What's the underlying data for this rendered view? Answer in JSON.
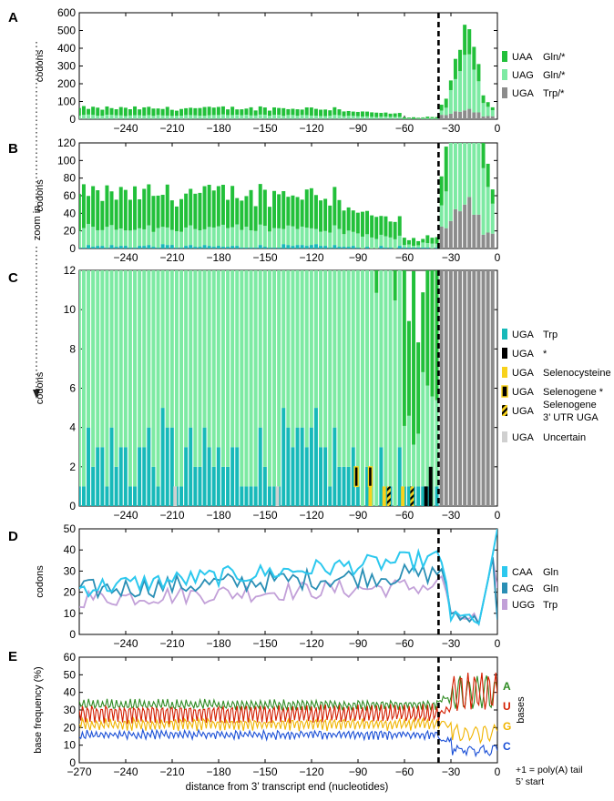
{
  "figure": {
    "xlabel": "distance from 3’ transcript end (nucleotides)",
    "zoom_label": "zoom in",
    "footnote_line1": "+1 = poly(A) tail",
    "footnote_line2": "5’ start"
  },
  "colors": {
    "uaa": "#22c03a",
    "uag": "#7deaa3",
    "uga_stop": "#8c8c8c",
    "uga_trp": "#17b9b9",
    "uga_star": "#000000",
    "uga_sec": "#f8d21c",
    "uncertain": "#d0d0d0",
    "caa": "#2cc8ee",
    "cag": "#2a8fb5",
    "ugg": "#c2a0d8",
    "A": "#2e8b22",
    "U": "#d41e00",
    "G": "#f0b400",
    "C": "#1a4fd6"
  },
  "chart_data": [
    {
      "panel": "A",
      "type": "bar",
      "stacked": true,
      "ylabel": "codons",
      "ylim": [
        0,
        600
      ],
      "yticks": [
        0,
        100,
        200,
        300,
        400,
        500,
        600
      ],
      "xlim": [
        -270,
        0
      ],
      "xticks": [
        -240,
        -210,
        -180,
        -150,
        -120,
        -90,
        -60,
        -30,
        0
      ],
      "cutoff_line_x": -38,
      "legend": [
        {
          "codon": "UAA",
          "label": "Gln/*",
          "color_key": "uaa"
        },
        {
          "codon": "UAG",
          "label": "Gln/*",
          "color_key": "uag"
        },
        {
          "codon": "UGA",
          "label": "Trp/*",
          "color_key": "uga_stop"
        }
      ]
    },
    {
      "panel": "B",
      "type": "bar",
      "stacked": true,
      "ylabel": "codons",
      "ylim": [
        0,
        120
      ],
      "yticks": [
        0,
        20,
        40,
        60,
        80,
        100,
        120
      ],
      "xlim": [
        -270,
        0
      ],
      "xticks": [
        -240,
        -210,
        -180,
        -150,
        -120,
        -90,
        -60,
        -30,
        0
      ],
      "cutoff_line_x": -38
    },
    {
      "panel": "C",
      "type": "bar",
      "stacked": true,
      "ylabel": "codons",
      "ylim": [
        0,
        12
      ],
      "yticks": [
        0,
        2,
        4,
        6,
        8,
        10,
        12
      ],
      "xlim": [
        -270,
        0
      ],
      "xticks": [
        -240,
        -210,
        -180,
        -150,
        -120,
        -90,
        -60,
        -30,
        0
      ],
      "cutoff_line_x": -38,
      "legend": [
        {
          "codon": "UGA",
          "label": "Trp",
          "color_key": "uga_trp"
        },
        {
          "codon": "UGA",
          "label": "*",
          "color_key": "uga_star"
        },
        {
          "codon": "UGA",
          "label": "Selenocysteine",
          "color_key": "uga_sec"
        },
        {
          "codon": "UGA",
          "label": "Selenogene *",
          "color_key": "uga_star"
        },
        {
          "codon": "UGA",
          "label": "Selenogene",
          "label2": "3’ UTR UGA",
          "color_key": "uga_star"
        },
        {
          "codon": "UGA",
          "label": "Uncertain",
          "color_key": "uncertain"
        }
      ],
      "special_bars": [
        {
          "x": -91,
          "kind": "selenogene_star",
          "value": 1
        },
        {
          "x": -82,
          "kind": "selenocysteine",
          "value": 1
        },
        {
          "x": -82,
          "kind": "selenogene_star",
          "value": 1
        },
        {
          "x": -73,
          "kind": "selenocysteine",
          "value": 1
        },
        {
          "x": -70,
          "kind": "selenogene_utr",
          "value": 1
        },
        {
          "x": -61,
          "kind": "selenocysteine",
          "value": 1
        },
        {
          "x": -55,
          "kind": "selenogene_utr",
          "value": 1
        },
        {
          "x": -46,
          "kind": "star",
          "value": 1
        },
        {
          "x": -43,
          "kind": "star",
          "value": 2
        },
        {
          "x": -208,
          "kind": "uncertain",
          "value": 1
        },
        {
          "x": -142,
          "kind": "uncertain",
          "value": 1
        }
      ]
    },
    {
      "panel": "D",
      "type": "line",
      "ylabel": "codons",
      "ylim": [
        0,
        50
      ],
      "yticks": [
        0,
        10,
        20,
        30,
        40,
        50
      ],
      "xlim": [
        -270,
        0
      ],
      "xticks": [
        -240,
        -210,
        -180,
        -150,
        -120,
        -90,
        -60,
        -30,
        0
      ],
      "cutoff_line_x": -38,
      "legend": [
        {
          "codon": "CAA",
          "label": "Gln",
          "color_key": "caa"
        },
        {
          "codon": "CAG",
          "label": "Gln",
          "color_key": "cag"
        },
        {
          "codon": "UGG",
          "label": "Trp",
          "color_key": "ugg"
        }
      ]
    },
    {
      "panel": "E",
      "type": "line",
      "ylabel": "base frequency (%)",
      "ylim": [
        0,
        60
      ],
      "yticks": [
        0,
        10,
        20,
        30,
        40,
        50,
        60
      ],
      "xlim": [
        -270,
        0
      ],
      "xticks": [
        -270,
        -240,
        -210,
        -180,
        -150,
        -120,
        -90,
        -60,
        -30,
        0
      ],
      "xlabel": "distance from 3’ transcript end (nucleotides)",
      "cutoff_line_x": -38,
      "legend_title": "bases",
      "legend": [
        {
          "base": "A",
          "color_key": "A"
        },
        {
          "base": "U",
          "color_key": "U"
        },
        {
          "base": "G",
          "color_key": "G"
        },
        {
          "base": "C",
          "color_key": "C"
        }
      ]
    }
  ]
}
